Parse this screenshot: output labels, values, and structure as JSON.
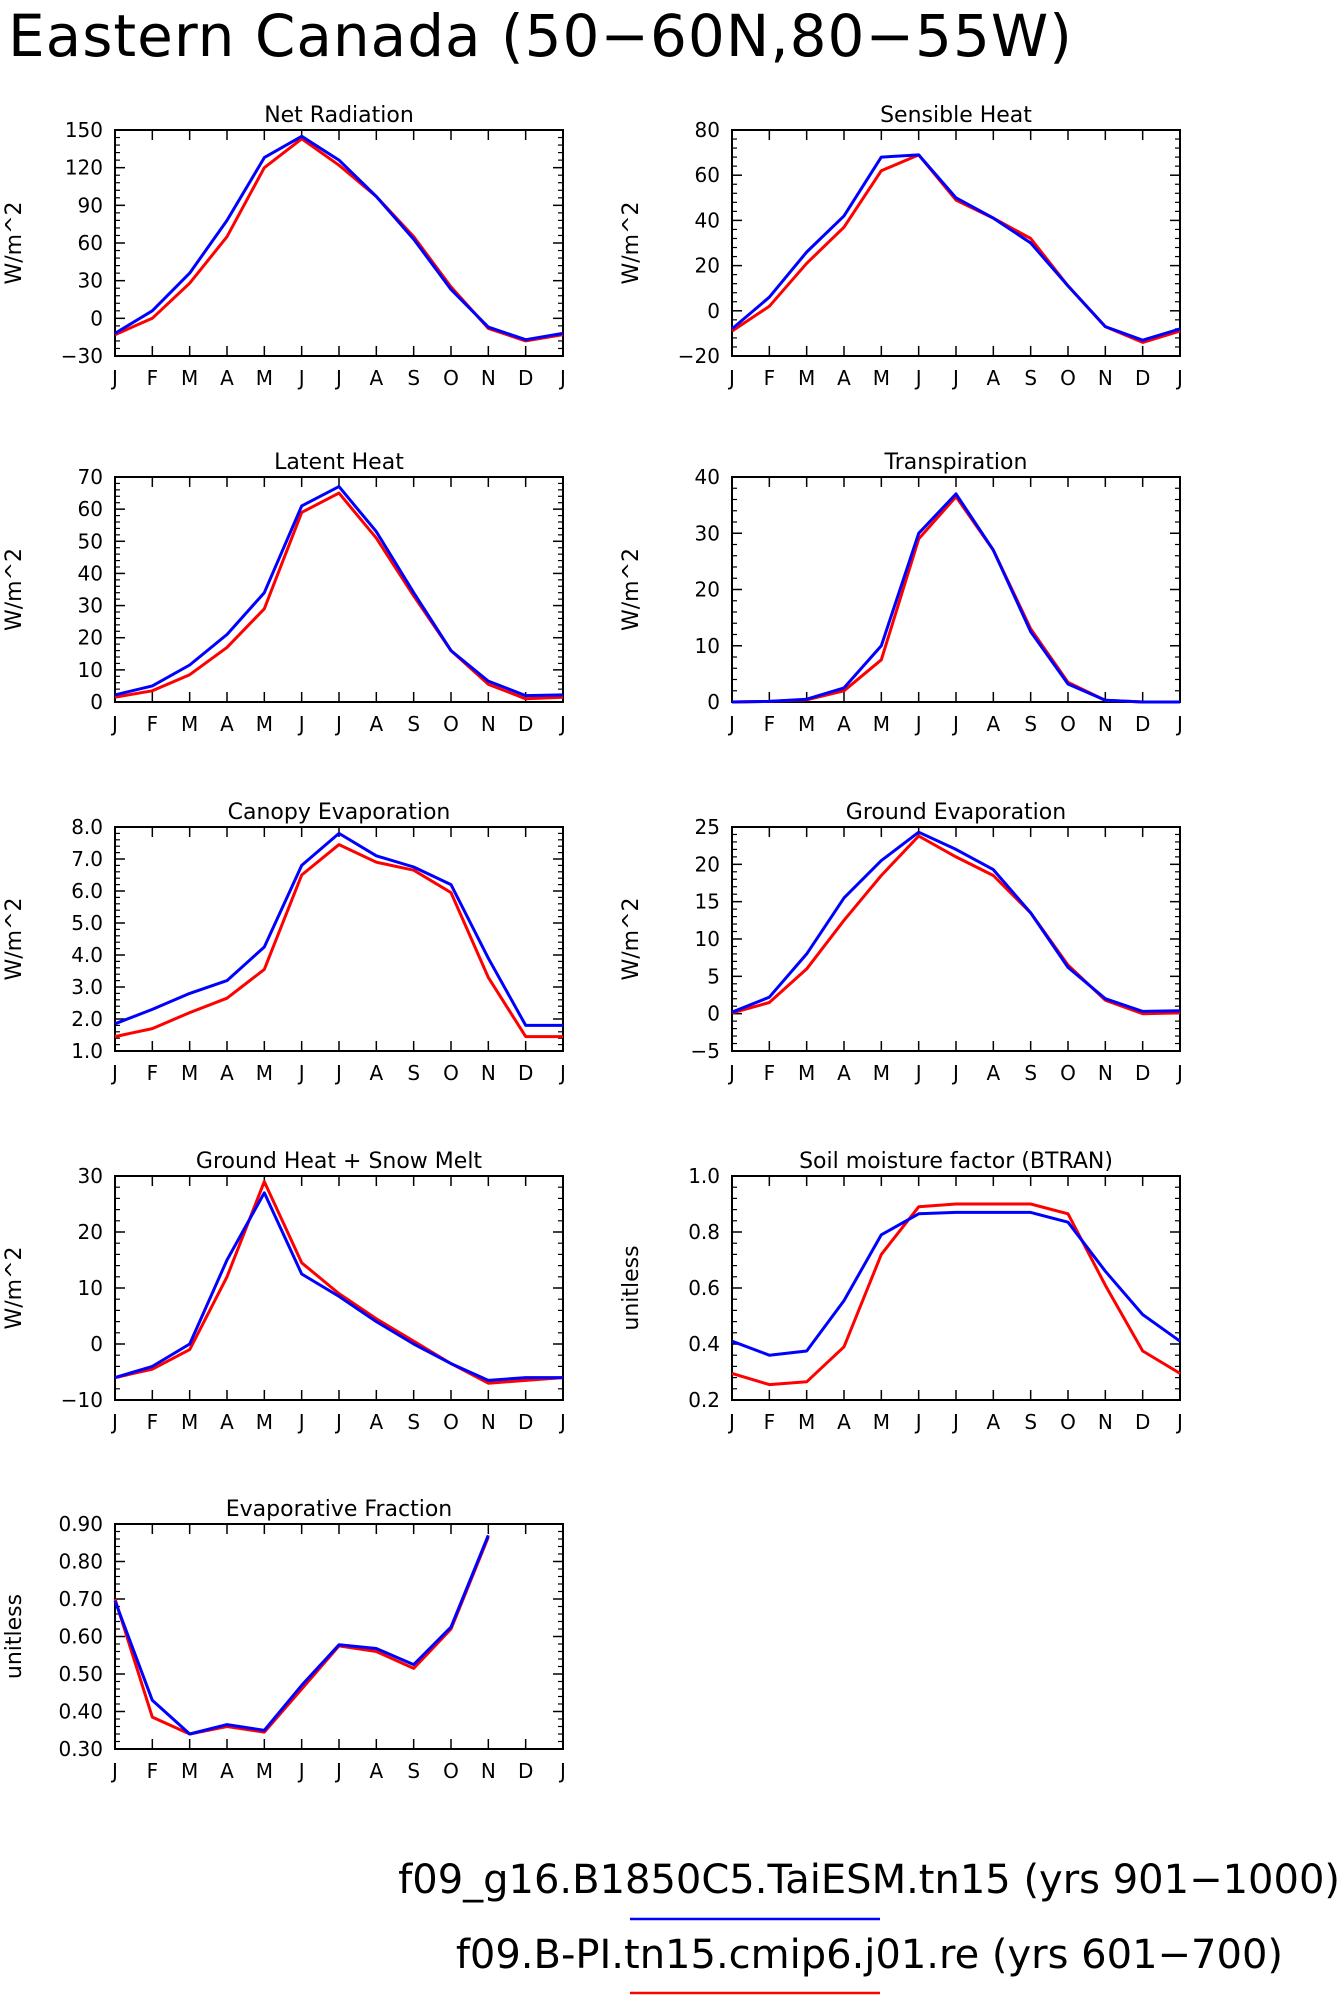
{
  "figure": {
    "title": "Eastern Canada (50−60N,80−55W)"
  },
  "legend": [
    {
      "label": "f09_g16.B1850C5.TaiESM.tn15 (yrs 901−1000)",
      "color": "#0000ff"
    },
    {
      "label": "f09.B-PI.tn15.cmip6.j01.re (yrs 601−700)",
      "color": "#ff0000"
    }
  ],
  "chart_data": [
    {
      "type": "line",
      "title": "Net Radiation",
      "ylabel": "W/m^2",
      "categories": [
        "J",
        "F",
        "M",
        "A",
        "M",
        "J",
        "J",
        "A",
        "S",
        "O",
        "N",
        "D",
        "J"
      ],
      "ylim": [
        -30,
        150
      ],
      "yticks": [
        -30,
        0,
        30,
        60,
        90,
        120,
        150
      ],
      "ytick_labels": [
        "−30",
        "0",
        "30",
        "60",
        "90",
        "120",
        "150"
      ],
      "series": [
        {
          "color": "#ff0000",
          "values": [
            -13,
            0,
            28,
            65,
            120,
            143,
            122,
            97,
            65,
            25,
            -8,
            -18,
            -13
          ]
        },
        {
          "color": "#0000ff",
          "values": [
            -12,
            6,
            36,
            78,
            128,
            145,
            126,
            97,
            63,
            23,
            -7,
            -17,
            -12
          ]
        }
      ]
    },
    {
      "type": "line",
      "title": "Sensible Heat",
      "ylabel": "W/m^2",
      "categories": [
        "J",
        "F",
        "M",
        "A",
        "M",
        "J",
        "J",
        "A",
        "S",
        "O",
        "N",
        "D",
        "J"
      ],
      "ylim": [
        -20,
        80
      ],
      "yticks": [
        -20,
        0,
        20,
        40,
        60,
        80
      ],
      "ytick_labels": [
        "−20",
        "0",
        "20",
        "40",
        "60",
        "80"
      ],
      "series": [
        {
          "color": "#ff0000",
          "values": [
            -9,
            2,
            21,
            37,
            62,
            69,
            49,
            41,
            32,
            11,
            -7,
            -14,
            -9
          ]
        },
        {
          "color": "#0000ff",
          "values": [
            -8,
            6,
            26,
            42,
            68,
            69,
            50,
            41,
            30,
            11,
            -7,
            -13,
            -8
          ]
        }
      ]
    },
    {
      "type": "line",
      "title": "Latent Heat",
      "ylabel": "W/m^2",
      "categories": [
        "J",
        "F",
        "M",
        "A",
        "M",
        "J",
        "J",
        "A",
        "S",
        "O",
        "N",
        "D",
        "J"
      ],
      "ylim": [
        0,
        70
      ],
      "yticks": [
        0,
        10,
        20,
        30,
        40,
        50,
        60,
        70
      ],
      "ytick_labels": [
        "0",
        "10",
        "20",
        "30",
        "40",
        "50",
        "60",
        "70"
      ],
      "series": [
        {
          "color": "#ff0000",
          "values": [
            1.5,
            3.5,
            8.5,
            17,
            29,
            59,
            65,
            51,
            33,
            16,
            5.5,
            1,
            1.5
          ]
        },
        {
          "color": "#0000ff",
          "values": [
            2.2,
            5,
            11.5,
            21,
            34,
            61,
            67,
            53,
            34,
            16,
            6.5,
            2,
            2.2
          ]
        }
      ]
    },
    {
      "type": "line",
      "title": "Transpiration",
      "ylabel": "W/m^2",
      "categories": [
        "J",
        "F",
        "M",
        "A",
        "M",
        "J",
        "J",
        "A",
        "S",
        "O",
        "N",
        "D",
        "J"
      ],
      "ylim": [
        0,
        40
      ],
      "yticks": [
        0,
        10,
        20,
        30,
        40
      ],
      "ytick_labels": [
        "0",
        "10",
        "20",
        "30",
        "40"
      ],
      "series": [
        {
          "color": "#ff0000",
          "values": [
            0,
            0.1,
            0.4,
            2.0,
            7.5,
            29,
            36.5,
            27,
            13,
            3.5,
            0.3,
            0,
            0
          ]
        },
        {
          "color": "#0000ff",
          "values": [
            0,
            0.1,
            0.5,
            2.5,
            10,
            30,
            37,
            27,
            12.5,
            3.2,
            0.3,
            0,
            0
          ]
        }
      ]
    },
    {
      "type": "line",
      "title": "Canopy Evaporation",
      "ylabel": "W/m^2",
      "categories": [
        "J",
        "F",
        "M",
        "A",
        "M",
        "J",
        "J",
        "A",
        "S",
        "O",
        "N",
        "D",
        "J"
      ],
      "ylim": [
        1.0,
        8.0
      ],
      "yticks": [
        1,
        2,
        3,
        4,
        5,
        6,
        7,
        8
      ],
      "ytick_labels": [
        "1.0",
        "2.0",
        "3.0",
        "4.0",
        "5.0",
        "6.0",
        "7.0",
        "8.0"
      ],
      "series": [
        {
          "color": "#ff0000",
          "values": [
            1.45,
            1.7,
            2.2,
            2.65,
            3.55,
            6.5,
            7.45,
            6.9,
            6.65,
            5.95,
            3.3,
            1.45,
            1.45
          ]
        },
        {
          "color": "#0000ff",
          "values": [
            1.85,
            2.3,
            2.8,
            3.2,
            4.25,
            6.8,
            7.8,
            7.1,
            6.75,
            6.2,
            3.9,
            1.8,
            1.8
          ]
        }
      ]
    },
    {
      "type": "line",
      "title": "Ground Evaporation",
      "ylabel": "W/m^2",
      "categories": [
        "J",
        "F",
        "M",
        "A",
        "M",
        "J",
        "J",
        "A",
        "S",
        "O",
        "N",
        "D",
        "J"
      ],
      "ylim": [
        -5,
        25
      ],
      "yticks": [
        -5,
        0,
        5,
        10,
        15,
        20,
        25
      ],
      "ytick_labels": [
        "−5",
        "0",
        "5",
        "10",
        "15",
        "20",
        "25"
      ],
      "series": [
        {
          "color": "#ff0000",
          "values": [
            0.1,
            1.5,
            6,
            12.5,
            18.5,
            23.8,
            21,
            18.5,
            13.5,
            6.5,
            1.8,
            0,
            0.1
          ]
        },
        {
          "color": "#0000ff",
          "values": [
            0.2,
            2.2,
            8,
            15.5,
            20.5,
            24.3,
            22,
            19.3,
            13.5,
            6.2,
            2.0,
            0.3,
            0.4
          ]
        }
      ]
    },
    {
      "type": "line",
      "title": "Ground Heat + Snow Melt",
      "ylabel": "W/m^2",
      "categories": [
        "J",
        "F",
        "M",
        "A",
        "M",
        "J",
        "J",
        "A",
        "S",
        "O",
        "N",
        "D",
        "J"
      ],
      "ylim": [
        -10,
        30
      ],
      "yticks": [
        -10,
        0,
        10,
        20,
        30
      ],
      "ytick_labels": [
        "−10",
        "0",
        "10",
        "20",
        "30"
      ],
      "series": [
        {
          "color": "#ff0000",
          "values": [
            -6,
            -4.5,
            -1,
            12,
            29,
            14.5,
            9,
            4.5,
            0.5,
            -3.5,
            -7,
            -6.5,
            -6
          ]
        },
        {
          "color": "#0000ff",
          "values": [
            -6,
            -4,
            0,
            15,
            27,
            12.5,
            8.5,
            4,
            0,
            -3.5,
            -6.5,
            -6,
            -6
          ]
        }
      ]
    },
    {
      "type": "line",
      "title": "Soil moisture factor (BTRAN)",
      "ylabel": "unitless",
      "categories": [
        "J",
        "F",
        "M",
        "A",
        "M",
        "J",
        "J",
        "A",
        "S",
        "O",
        "N",
        "D",
        "J"
      ],
      "ylim": [
        0.2,
        1.0
      ],
      "yticks": [
        0.2,
        0.4,
        0.6,
        0.8,
        1.0
      ],
      "ytick_labels": [
        "0.2",
        "0.4",
        "0.6",
        "0.8",
        "1.0"
      ],
      "series": [
        {
          "color": "#ff0000",
          "values": [
            0.295,
            0.255,
            0.265,
            0.39,
            0.72,
            0.89,
            0.9,
            0.9,
            0.9,
            0.865,
            0.61,
            0.375,
            0.295
          ]
        },
        {
          "color": "#0000ff",
          "values": [
            0.41,
            0.36,
            0.375,
            0.555,
            0.79,
            0.865,
            0.87,
            0.87,
            0.87,
            0.835,
            0.66,
            0.505,
            0.41
          ]
        }
      ]
    },
    {
      "type": "line",
      "title": "Evaporative Fraction",
      "ylabel": "unitless",
      "categories": [
        "J",
        "F",
        "M",
        "A",
        "M",
        "J",
        "J",
        "A",
        "S",
        "O",
        "N",
        "D",
        "J"
      ],
      "ylim": [
        0.3,
        0.9
      ],
      "yticks": [
        0.3,
        0.4,
        0.5,
        0.6,
        0.7,
        0.8,
        0.9
      ],
      "ytick_labels": [
        "0.30",
        "0.40",
        "0.50",
        "0.60",
        "0.70",
        "0.80",
        "0.90"
      ],
      "series": [
        {
          "color": "#ff0000",
          "values": [
            0.7,
            0.385,
            0.34,
            0.36,
            0.345,
            0.46,
            0.575,
            0.56,
            0.515,
            0.62,
            0.865,
            null,
            null
          ]
        },
        {
          "color": "#0000ff",
          "values": [
            0.695,
            0.43,
            0.34,
            0.365,
            0.35,
            0.47,
            0.578,
            0.568,
            0.525,
            0.625,
            0.87,
            null,
            null
          ]
        }
      ]
    }
  ]
}
